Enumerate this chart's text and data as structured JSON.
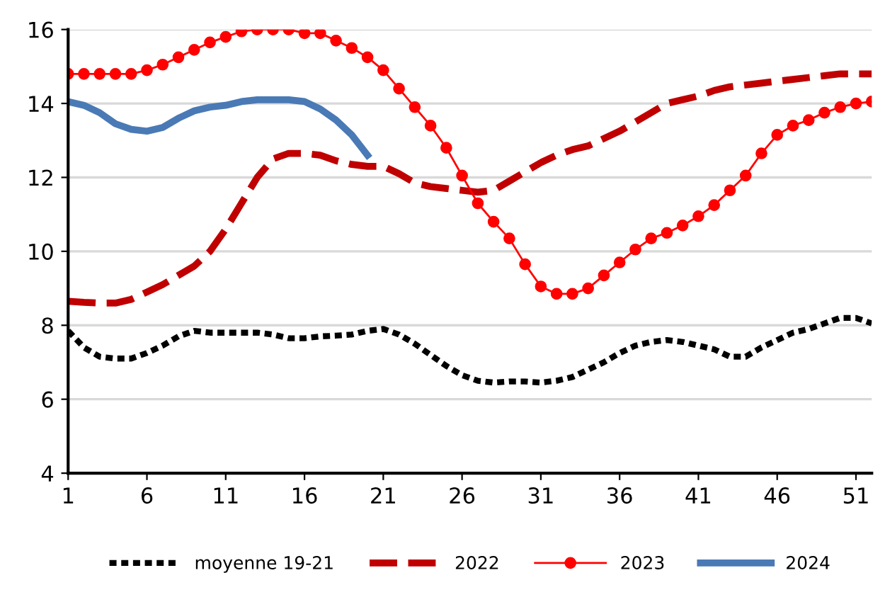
{
  "chart_data": {
    "type": "line",
    "x": [
      1,
      2,
      3,
      4,
      5,
      6,
      7,
      8,
      9,
      10,
      11,
      12,
      13,
      14,
      15,
      16,
      17,
      18,
      19,
      20,
      21,
      22,
      23,
      24,
      25,
      26,
      27,
      28,
      29,
      30,
      31,
      32,
      33,
      34,
      35,
      36,
      37,
      38,
      39,
      40,
      41,
      42,
      43,
      44,
      45,
      46,
      47,
      48,
      49,
      50,
      51,
      52
    ],
    "series": [
      {
        "name": "moyenne 19-21",
        "color": "#000000",
        "line_style": "dashed",
        "marker": "none",
        "values": [
          7.85,
          7.4,
          7.15,
          7.1,
          7.1,
          7.25,
          7.45,
          7.7,
          7.85,
          7.8,
          7.8,
          7.8,
          7.8,
          7.75,
          7.65,
          7.65,
          7.7,
          7.72,
          7.75,
          7.85,
          7.9,
          7.75,
          7.5,
          7.2,
          6.9,
          6.65,
          6.5,
          6.45,
          6.48,
          6.48,
          6.45,
          6.5,
          6.6,
          6.8,
          7.0,
          7.25,
          7.45,
          7.55,
          7.6,
          7.55,
          7.45,
          7.35,
          7.15,
          7.15,
          7.4,
          7.6,
          7.8,
          7.9,
          8.05,
          8.2,
          8.2,
          8.05
        ]
      },
      {
        "name": "2022",
        "color": "#c00000",
        "line_style": "dashed",
        "marker": "none",
        "values": [
          8.65,
          8.62,
          8.6,
          8.6,
          8.7,
          8.9,
          9.1,
          9.35,
          9.6,
          10.0,
          10.6,
          11.3,
          12.0,
          12.5,
          12.65,
          12.65,
          12.6,
          12.45,
          12.35,
          12.3,
          12.3,
          12.1,
          11.85,
          11.75,
          11.7,
          11.65,
          11.6,
          11.65,
          11.9,
          12.15,
          12.4,
          12.6,
          12.75,
          12.85,
          13.05,
          13.25,
          13.5,
          13.75,
          14.0,
          14.1,
          14.2,
          14.35,
          14.45,
          14.5,
          14.55,
          14.6,
          14.65,
          14.7,
          14.75,
          14.8,
          14.8,
          14.8
        ]
      },
      {
        "name": "2023",
        "color": "#ff0000",
        "line_style": "solid",
        "marker": "circle",
        "values": [
          14.8,
          14.8,
          14.8,
          14.8,
          14.8,
          14.9,
          15.05,
          15.25,
          15.45,
          15.65,
          15.8,
          15.95,
          16.0,
          16.0,
          16.0,
          15.9,
          15.9,
          15.7,
          15.5,
          15.25,
          14.9,
          14.4,
          13.9,
          13.4,
          12.8,
          12.05,
          11.3,
          10.8,
          10.35,
          9.65,
          9.05,
          8.85,
          8.85,
          9.0,
          9.35,
          9.7,
          10.05,
          10.35,
          10.5,
          10.7,
          10.95,
          11.25,
          11.65,
          12.05,
          12.65,
          13.15,
          13.4,
          13.55,
          13.75,
          13.9,
          14.0,
          14.05
        ]
      },
      {
        "name": "2024",
        "color": "#4a7ab5",
        "line_style": "solid",
        "marker": "none",
        "values": [
          14.05,
          13.95,
          13.75,
          13.45,
          13.3,
          13.25,
          13.35,
          13.6,
          13.8,
          13.9,
          13.95,
          14.05,
          14.1,
          14.1,
          14.1,
          14.05,
          13.85,
          13.55,
          13.15,
          12.6,
          null,
          null,
          null,
          null,
          null,
          null,
          null,
          null,
          null,
          null,
          null,
          null,
          null,
          null,
          null,
          null,
          null,
          null,
          null,
          null,
          null,
          null,
          null,
          null,
          null,
          null,
          null,
          null,
          null,
          null,
          null,
          null
        ]
      }
    ],
    "xlim": [
      1,
      52
    ],
    "xticks": [
      1,
      6,
      11,
      16,
      21,
      26,
      31,
      36,
      41,
      46,
      51
    ],
    "ylim": [
      4,
      16
    ],
    "yticks": [
      4,
      6,
      8,
      10,
      12,
      14,
      16
    ],
    "grid": "y",
    "legend": "bottom"
  }
}
